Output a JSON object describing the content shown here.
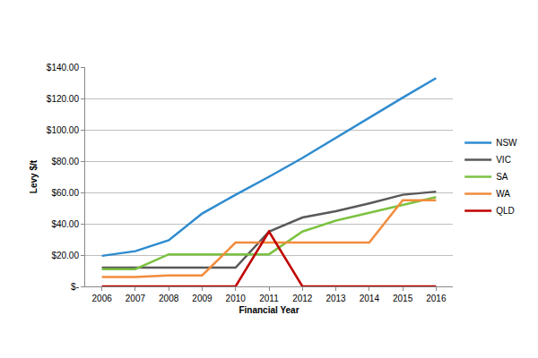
{
  "chart_data": {
    "type": "line",
    "x_label": "Financial Year",
    "y_label": "Levy $/t",
    "categories": [
      "2006",
      "2007",
      "2008",
      "2009",
      "2010",
      "2011",
      "2012",
      "2013",
      "2014",
      "2015",
      "2016"
    ],
    "series": [
      {
        "name": "NSW",
        "color": "#2e8bcf",
        "values": [
          19.5,
          22.5,
          29.5,
          46.5,
          58.5,
          70,
          82,
          95,
          107.5,
          120.5,
          133
        ]
      },
      {
        "name": "VIC",
        "color": "#595959",
        "values": [
          12,
          12,
          12,
          12,
          12,
          35,
          44,
          48,
          53,
          58.5,
          60.5
        ]
      },
      {
        "name": "SA",
        "color": "#7cc242",
        "values": [
          11,
          11,
          20.5,
          20.5,
          20.5,
          20.5,
          35,
          42,
          47,
          52,
          57
        ]
      },
      {
        "name": "WA",
        "color": "#f28c3c",
        "values": [
          6,
          6,
          7,
          7,
          28,
          28,
          28,
          28,
          28,
          55,
          55
        ]
      },
      {
        "name": "QLD",
        "color": "#c00000",
        "values": [
          0,
          0,
          0,
          0,
          0,
          35,
          0,
          0,
          0,
          0,
          0
        ]
      }
    ],
    "ylim": [
      0,
      140
    ],
    "yticks": [
      {
        "value": 0,
        "label": "$-"
      },
      {
        "value": 20,
        "label": "$20.00"
      },
      {
        "value": 40,
        "label": "$40.00"
      },
      {
        "value": 60,
        "label": "$60.00"
      },
      {
        "value": 80,
        "label": "$80.00"
      },
      {
        "value": 100,
        "label": "$100.00"
      },
      {
        "value": 120,
        "label": "$120.00"
      },
      {
        "value": 140,
        "label": "$140.00"
      }
    ],
    "grid": true,
    "legend": "right"
  }
}
